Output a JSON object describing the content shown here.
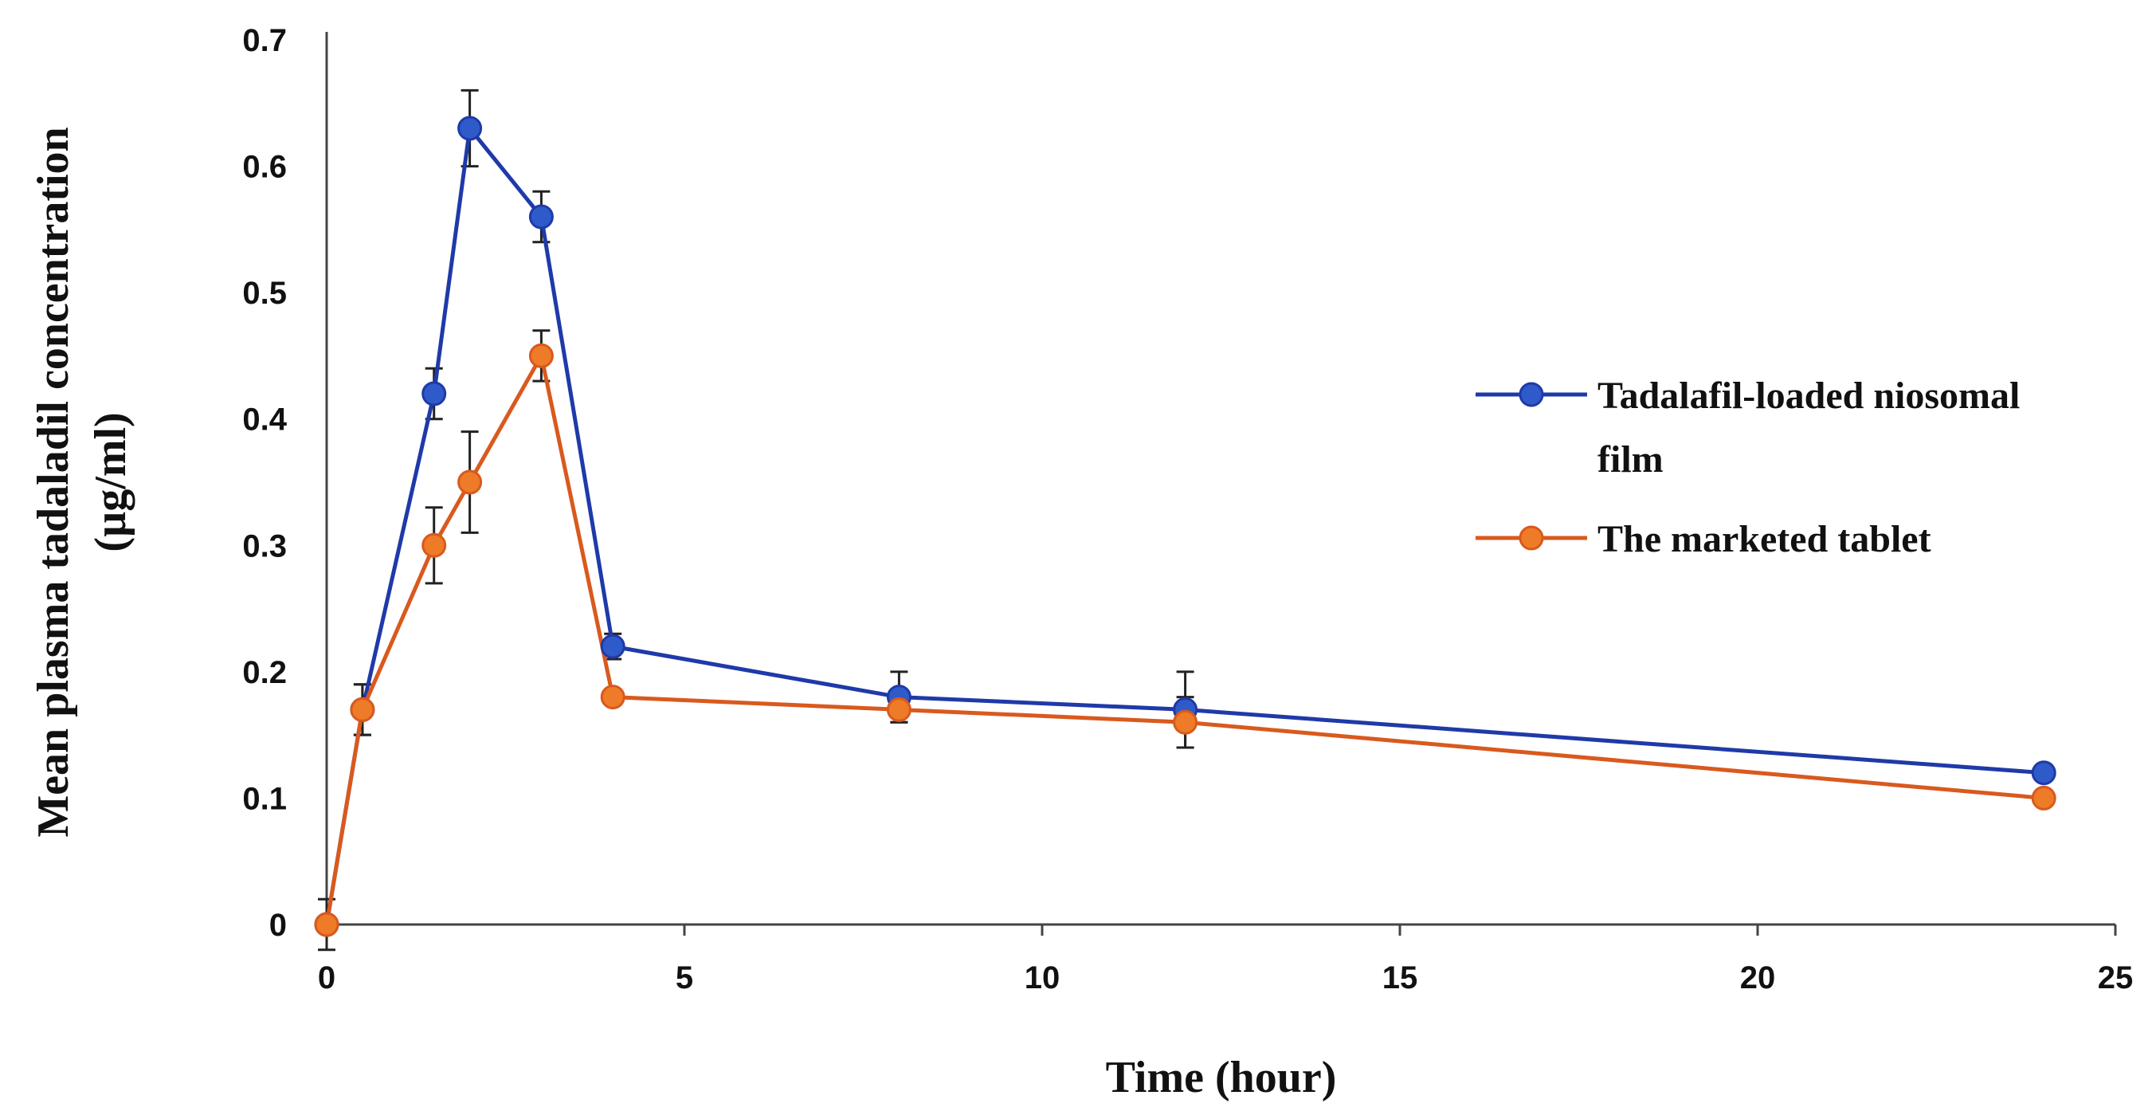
{
  "chart_data": {
    "type": "line",
    "xlabel": "Time (hour)",
    "ylabel_lines": [
      "Mean plasma tadaladil concentration",
      "(µg/ml)"
    ],
    "xlim": [
      0,
      25
    ],
    "ylim": [
      0,
      0.7
    ],
    "xticks": [
      "0",
      "5",
      "10",
      "15",
      "20",
      "25"
    ],
    "yticks": [
      "0",
      "0.1",
      "0.2",
      "0.3",
      "0.4",
      "0.5",
      "0.6",
      "0.7"
    ],
    "grid": false,
    "legend_position": "right",
    "x": [
      0,
      0.5,
      1.5,
      2,
      3,
      4,
      8,
      12,
      24
    ],
    "series": [
      {
        "name": "Tadalafil-loaded niosomal film",
        "legend_lines": [
          "Tadalafil-loaded niosomal",
          "film"
        ],
        "color": "#1F3AA8",
        "marker": "#2E5BC9",
        "values": [
          0,
          0.17,
          0.42,
          0.63,
          0.56,
          0.22,
          0.18,
          0.17,
          0.12
        ],
        "errors": [
          0.02,
          0.02,
          0.02,
          0.03,
          0.02,
          0.01,
          0.02,
          0.03,
          0
        ]
      },
      {
        "name": "The marketed tablet",
        "legend_lines": [
          "The marketed tablet"
        ],
        "color": "#D9591E",
        "marker": "#EE7B27",
        "values": [
          0,
          0.17,
          0.3,
          0.35,
          0.45,
          0.18,
          0.17,
          0.16,
          0.1
        ],
        "errors": [
          0,
          0.02,
          0.03,
          0.04,
          0.02,
          0,
          0.01,
          0.02,
          0
        ]
      }
    ]
  }
}
